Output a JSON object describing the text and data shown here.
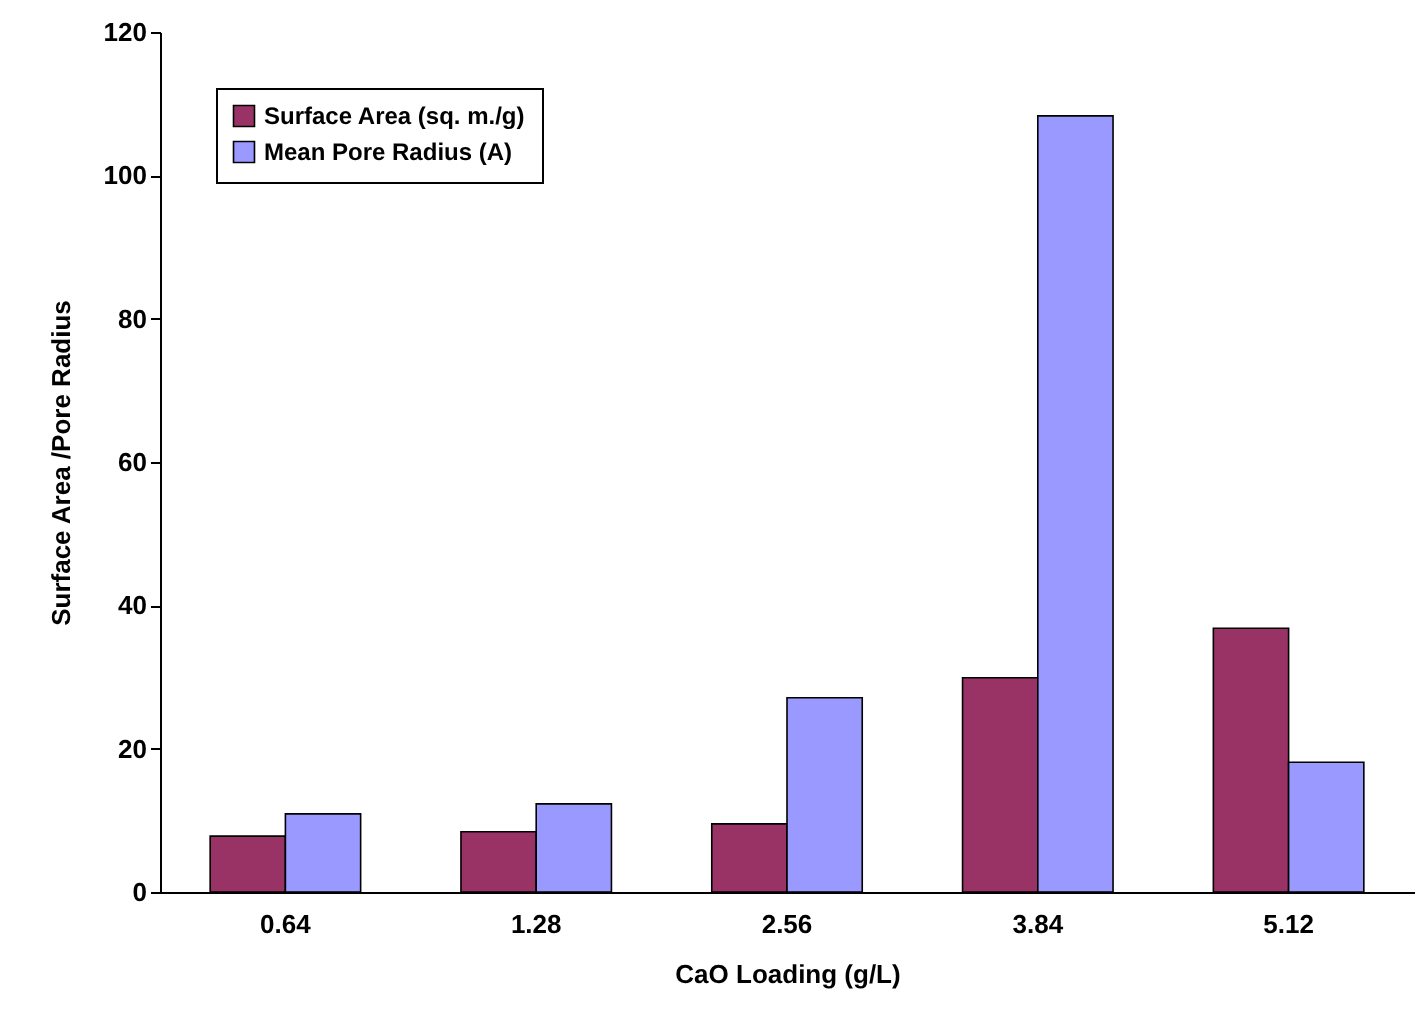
{
  "chart_data": {
    "type": "bar",
    "xlabel": "CaO Loading (g/L)",
    "ylabel": "Surface Area /Pore Radius",
    "categories": [
      "0.64",
      "1.28",
      "2.56",
      "3.84",
      "5.12"
    ],
    "series": [
      {
        "name": "Surface Area (sq. m./g)",
        "color": "#993366",
        "values": [
          7.8,
          8.4,
          9.5,
          29.9,
          36.8
        ]
      },
      {
        "name": "Mean Pore Radius (A)",
        "color": "#9999ff",
        "values": [
          10.9,
          12.3,
          27.1,
          108.3,
          18.1
        ]
      }
    ],
    "ylim": [
      0,
      120
    ],
    "yticks": [
      0,
      20,
      40,
      60,
      80,
      100,
      120
    ],
    "grid": false,
    "legend": "top left"
  }
}
